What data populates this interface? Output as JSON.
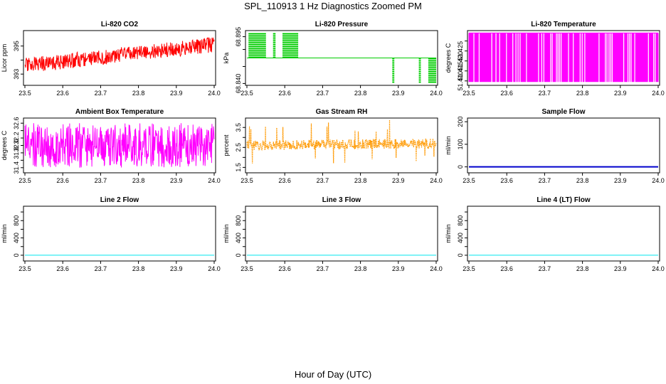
{
  "page": {
    "title": "SPL_110913  1 Hz Diagnostics Zoomed PM",
    "xlabel": "Hour of Day (UTC)"
  },
  "chart_data": [
    {
      "id": "li820-co2",
      "type": "line",
      "title": "Li-820 CO2",
      "ylabel": "Licor ppm",
      "color": "#ff0000",
      "style": "noise",
      "xlim": [
        23.5,
        24.0
      ],
      "ylim": [
        392.3,
        396.0
      ],
      "xticks": [
        23.5,
        23.6,
        23.7,
        23.8,
        23.9,
        24.0
      ],
      "yticks": [
        393,
        394,
        395
      ],
      "yticklabels": [
        "393",
        "",
        "395"
      ],
      "trend": [
        {
          "x": 23.5,
          "y": 393.6
        },
        {
          "x": 24.0,
          "y": 395.1
        }
      ],
      "spread": 0.55,
      "seed": 11
    },
    {
      "id": "li820-pressure",
      "type": "line",
      "title": "Li-820 Pressure",
      "ylabel": "kPa",
      "color": "#00cc00",
      "style": "steps",
      "xlim": [
        23.5,
        24.0
      ],
      "ylim": [
        68.8395,
        68.9005
      ],
      "xticks": [
        23.5,
        23.6,
        23.7,
        23.8,
        23.9,
        24.0
      ],
      "yticks": [
        68.84,
        68.86,
        68.88,
        68.895
      ],
      "yticklabels": [
        "68.840",
        "",
        "",
        "68.895"
      ],
      "base": 68.87,
      "high": 68.9,
      "low": 68.84,
      "high_bursts": [
        [
          23.505,
          23.55
        ],
        [
          23.57,
          23.575
        ],
        [
          23.595,
          23.635
        ]
      ],
      "low_bursts": [
        [
          23.885,
          23.889
        ],
        [
          23.955,
          23.959
        ],
        [
          23.98,
          24.0
        ]
      ]
    },
    {
      "id": "li820-temperature",
      "type": "line",
      "title": "Li-820 Temperature",
      "ylabel": "degrees C",
      "color": "#ff00ff",
      "style": "square",
      "xlim": [
        23.5,
        24.0
      ],
      "ylim": [
        51.4085,
        51.4345
      ],
      "xticks": [
        23.5,
        23.6,
        23.7,
        23.8,
        23.9,
        24.0
      ],
      "yticks": [
        51.41,
        51.415,
        51.42,
        51.425,
        51.43
      ],
      "yticklabels": [
        "51.410",
        "51.415",
        "51.420",
        "51.425",
        ""
      ],
      "high": 51.434,
      "low": 51.4095,
      "seed": 7
    },
    {
      "id": "ambient-box-temperature",
      "type": "line",
      "title": "Ambient Box Temperature",
      "ylabel": "degrees C",
      "color": "#ff00ff",
      "style": "noise",
      "xlim": [
        23.5,
        24.0
      ],
      "ylim": [
        31.3,
        32.7
      ],
      "xticks": [
        23.5,
        23.6,
        23.7,
        23.8,
        23.9,
        24.0
      ],
      "yticks": [
        31.4,
        31.6,
        31.8,
        32.0,
        32.2,
        32.4,
        32.6
      ],
      "yticklabels": [
        "31.4",
        "",
        "31.8",
        "32.0",
        "32.2",
        "",
        "32.6"
      ],
      "trend": [
        {
          "x": 23.5,
          "y": 32.0
        },
        {
          "x": 24.0,
          "y": 32.0
        }
      ],
      "spread": 0.6,
      "seed": 23
    },
    {
      "id": "gas-stream-rh",
      "type": "line",
      "title": "Gas Stream RH",
      "ylabel": "percent",
      "color": "#ff9900",
      "style": "rh",
      "xlim": [
        23.5,
        24.0
      ],
      "ylim": [
        1.3,
        3.9
      ],
      "xticks": [
        23.5,
        23.6,
        23.7,
        23.8,
        23.9,
        24.0
      ],
      "yticks": [
        1.5,
        2.0,
        2.5,
        3.0,
        3.5
      ],
      "yticklabels": [
        "1.5",
        "",
        "2.5",
        "",
        "3.5"
      ],
      "trend": [
        {
          "x": 23.5,
          "y": 2.6
        },
        {
          "x": 24.0,
          "y": 2.7
        }
      ],
      "spread": 0.25,
      "seed": 5
    },
    {
      "id": "sample-flow",
      "type": "line",
      "title": "Sample Flow",
      "ylabel": "ml/min",
      "color": "#0000cc",
      "style": "flat",
      "line_width": 2,
      "xlim": [
        23.5,
        24.0
      ],
      "ylim": [
        -20,
        210
      ],
      "xticks": [
        23.5,
        23.6,
        23.7,
        23.8,
        23.9,
        24.0
      ],
      "yticks": [
        0,
        100,
        200
      ],
      "yticklabels": [
        "0",
        "100",
        "200"
      ],
      "value": 0
    },
    {
      "id": "line-2-flow",
      "type": "line",
      "title": "Line 2 Flow",
      "ylabel": "ml/min",
      "color": "#00e5ee",
      "style": "flat",
      "line_width": 1,
      "xlim": [
        23.5,
        24.0
      ],
      "ylim": [
        -100,
        1100
      ],
      "xticks": [
        23.5,
        23.6,
        23.7,
        23.8,
        23.9,
        24.0
      ],
      "yticks": [
        0,
        200,
        400,
        600,
        800,
        1000
      ],
      "yticklabels": [
        "0",
        "",
        "400",
        "",
        "800",
        ""
      ],
      "value": 0
    },
    {
      "id": "line-3-flow",
      "type": "line",
      "title": "Line 3 Flow",
      "ylabel": "ml/min",
      "color": "#00e5ee",
      "style": "flat",
      "line_width": 1,
      "xlim": [
        23.5,
        24.0
      ],
      "ylim": [
        -100,
        1100
      ],
      "xticks": [
        23.5,
        23.6,
        23.7,
        23.8,
        23.9,
        24.0
      ],
      "yticks": [
        0,
        200,
        400,
        600,
        800,
        1000
      ],
      "yticklabels": [
        "0",
        "",
        "400",
        "",
        "800",
        ""
      ],
      "value": 0
    },
    {
      "id": "line-4-lt-flow",
      "type": "line",
      "title": "Line 4 (LT) Flow",
      "ylabel": "ml/min",
      "color": "#00e5ee",
      "style": "flat",
      "line_width": 1,
      "xlim": [
        23.5,
        24.0
      ],
      "ylim": [
        -100,
        1100
      ],
      "xticks": [
        23.5,
        23.6,
        23.7,
        23.8,
        23.9,
        24.0
      ],
      "yticks": [
        0,
        200,
        400,
        600,
        800,
        1000
      ],
      "yticklabels": [
        "0",
        "",
        "400",
        "",
        "800",
        ""
      ],
      "value": 0
    }
  ]
}
